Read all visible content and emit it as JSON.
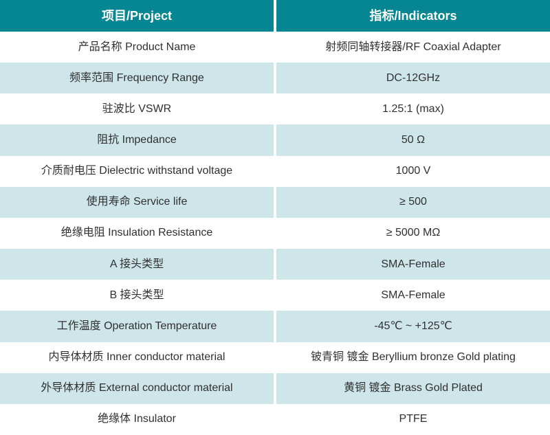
{
  "colors": {
    "header_bg": "#068592",
    "alt_row_bg": "#cee5e9",
    "row_bg": "#ffffff",
    "header_text": "#ffffff",
    "body_text": "#303030"
  },
  "table": {
    "header": {
      "project": "项目/Project",
      "indicators": "指标/Indicators"
    },
    "rows": [
      {
        "project": "产品名称 Product Name",
        "indicator": "射频同轴转接器/RF Coaxial Adapter"
      },
      {
        "project": "频率范围 Frequency Range",
        "indicator": "DC-12GHz"
      },
      {
        "project": "驻波比 VSWR",
        "indicator": "1.25:1 (max)"
      },
      {
        "project": "阻抗 Impedance",
        "indicator": "50 Ω"
      },
      {
        "project": "介质耐电压 Dielectric withstand voltage",
        "indicator": "1000 V"
      },
      {
        "project": "使用寿命 Service life",
        "indicator": "≥ 500"
      },
      {
        "project": "绝缘电阻 Insulation Resistance",
        "indicator": "≥ 5000 MΩ"
      },
      {
        "project": "A 接头类型",
        "indicator": "SMA-Female"
      },
      {
        "project": "B 接头类型",
        "indicator": "SMA-Female"
      },
      {
        "project": "工作温度 Operation Temperature",
        "indicator": "-45℃ ~ +125℃"
      },
      {
        "project": "内导体材质 Inner conductor material",
        "indicator": "铍青铜 镀金 Beryllium bronze Gold plating"
      },
      {
        "project": "外导体材质 External conductor material",
        "indicator": "黄铜 镀金 Brass Gold Plated"
      },
      {
        "project": "绝缘体 Insulator",
        "indicator": "PTFE"
      }
    ]
  }
}
